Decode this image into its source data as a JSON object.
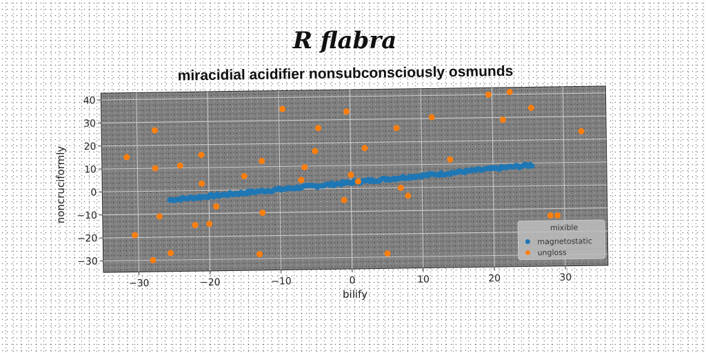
{
  "chart_data": {
    "type": "scatter",
    "suptitle": "R flabra",
    "title": "miracidial acidifier nonsubconsciously osmunds",
    "xlabel": "bilify",
    "ylabel": "noncruciformly",
    "xlim": [
      -35,
      36
    ],
    "ylim": [
      -35,
      43
    ],
    "xticks": [
      -30,
      -20,
      -10,
      0,
      10,
      20,
      30
    ],
    "yticks": [
      -30,
      -20,
      -10,
      0,
      10,
      20,
      30,
      40
    ],
    "grid": true,
    "legend": {
      "title": "mixible",
      "placement": "lower-right"
    },
    "series": [
      {
        "name": "magnetostatic",
        "color": "#1f77b4",
        "line": {
          "x_start": -25.5,
          "x_end": 25.5,
          "slope": 0.255,
          "intercept": 2.6,
          "n_points": 200,
          "noise": 0.6
        }
      },
      {
        "name": "ungloss",
        "color": "#ff7f0e",
        "points": [
          [
            -31.5,
            15
          ],
          [
            -30.5,
            -19
          ],
          [
            -28,
            -30
          ],
          [
            -27.5,
            26.5
          ],
          [
            -27.5,
            10
          ],
          [
            -27,
            -11
          ],
          [
            -25.5,
            -27
          ],
          [
            -24,
            11
          ],
          [
            -22,
            -15
          ],
          [
            -21,
            15.5
          ],
          [
            -21,
            3
          ],
          [
            -20,
            -14.5
          ],
          [
            -19,
            -7
          ],
          [
            -15,
            6
          ],
          [
            -13,
            -28
          ],
          [
            -12.5,
            12.5
          ],
          [
            -12.5,
            -10
          ],
          [
            -9.5,
            35
          ],
          [
            -7,
            4
          ],
          [
            -6.5,
            9.5
          ],
          [
            -5,
            16.5
          ],
          [
            -4.5,
            26.5
          ],
          [
            -1,
            -5
          ],
          [
            -0.5,
            33.5
          ],
          [
            0,
            6
          ],
          [
            1,
            3
          ],
          [
            2,
            17.5
          ],
          [
            5,
            -28.5
          ],
          [
            6.5,
            26
          ],
          [
            7,
            0
          ],
          [
            8,
            -3.5
          ],
          [
            11.5,
            30.5
          ],
          [
            14,
            12
          ],
          [
            19.5,
            40
          ],
          [
            21.5,
            29
          ],
          [
            22.5,
            41
          ],
          [
            25.5,
            34
          ],
          [
            28,
            -13
          ],
          [
            29,
            -13
          ],
          [
            32.5,
            23.5
          ]
        ]
      }
    ]
  }
}
